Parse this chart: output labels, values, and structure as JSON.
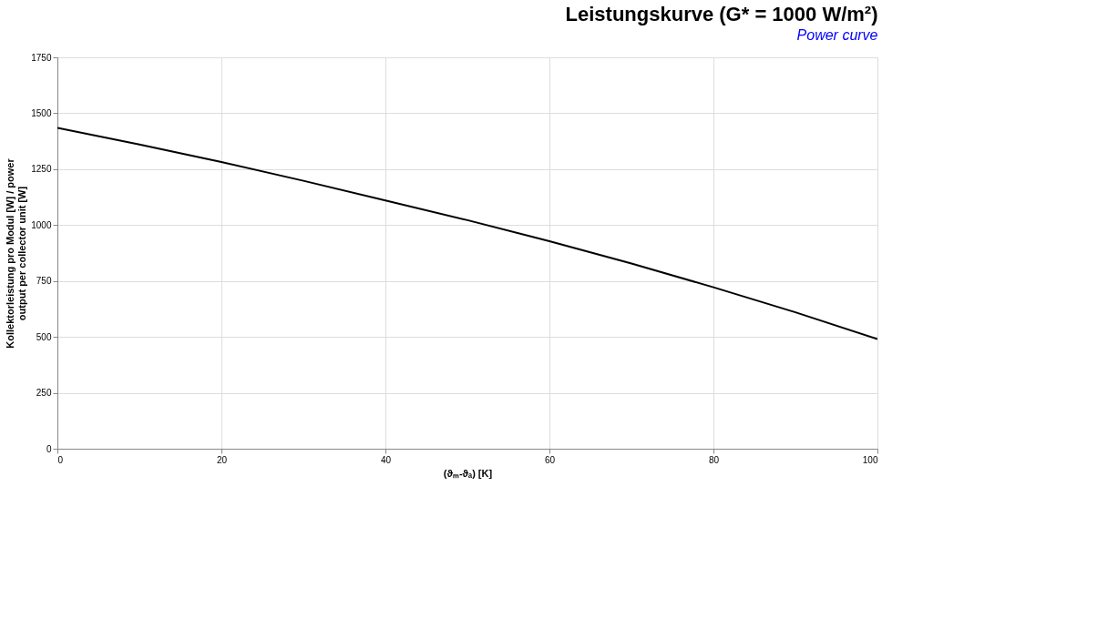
{
  "chart_data": {
    "type": "line",
    "title": "Leistungskurve (G* = 1000 W/m²)",
    "subtitle": "Power curve",
    "xlabel": "(ϑₘ-ϑₐ) [K]",
    "ylabel": "Kollektorleistung pro Modul [W] / power output per collector unit [W]",
    "x": [
      0,
      10,
      20,
      30,
      40,
      50,
      60,
      70,
      80,
      90,
      100
    ],
    "series": [
      {
        "color": "#000000",
        "values": [
          1435,
          1360,
          1282,
          1198,
          1110,
          1022,
          928,
          828,
          722,
          610,
          490
        ]
      }
    ],
    "xlim": [
      0,
      100
    ],
    "xticks": [
      0,
      20,
      40,
      60,
      80,
      100
    ],
    "ylim": [
      0,
      1750
    ],
    "yticks": [
      0,
      250,
      500,
      750,
      1000,
      1250,
      1500,
      1750
    ],
    "grid": true,
    "marker": "none",
    "line_style": "solid"
  }
}
